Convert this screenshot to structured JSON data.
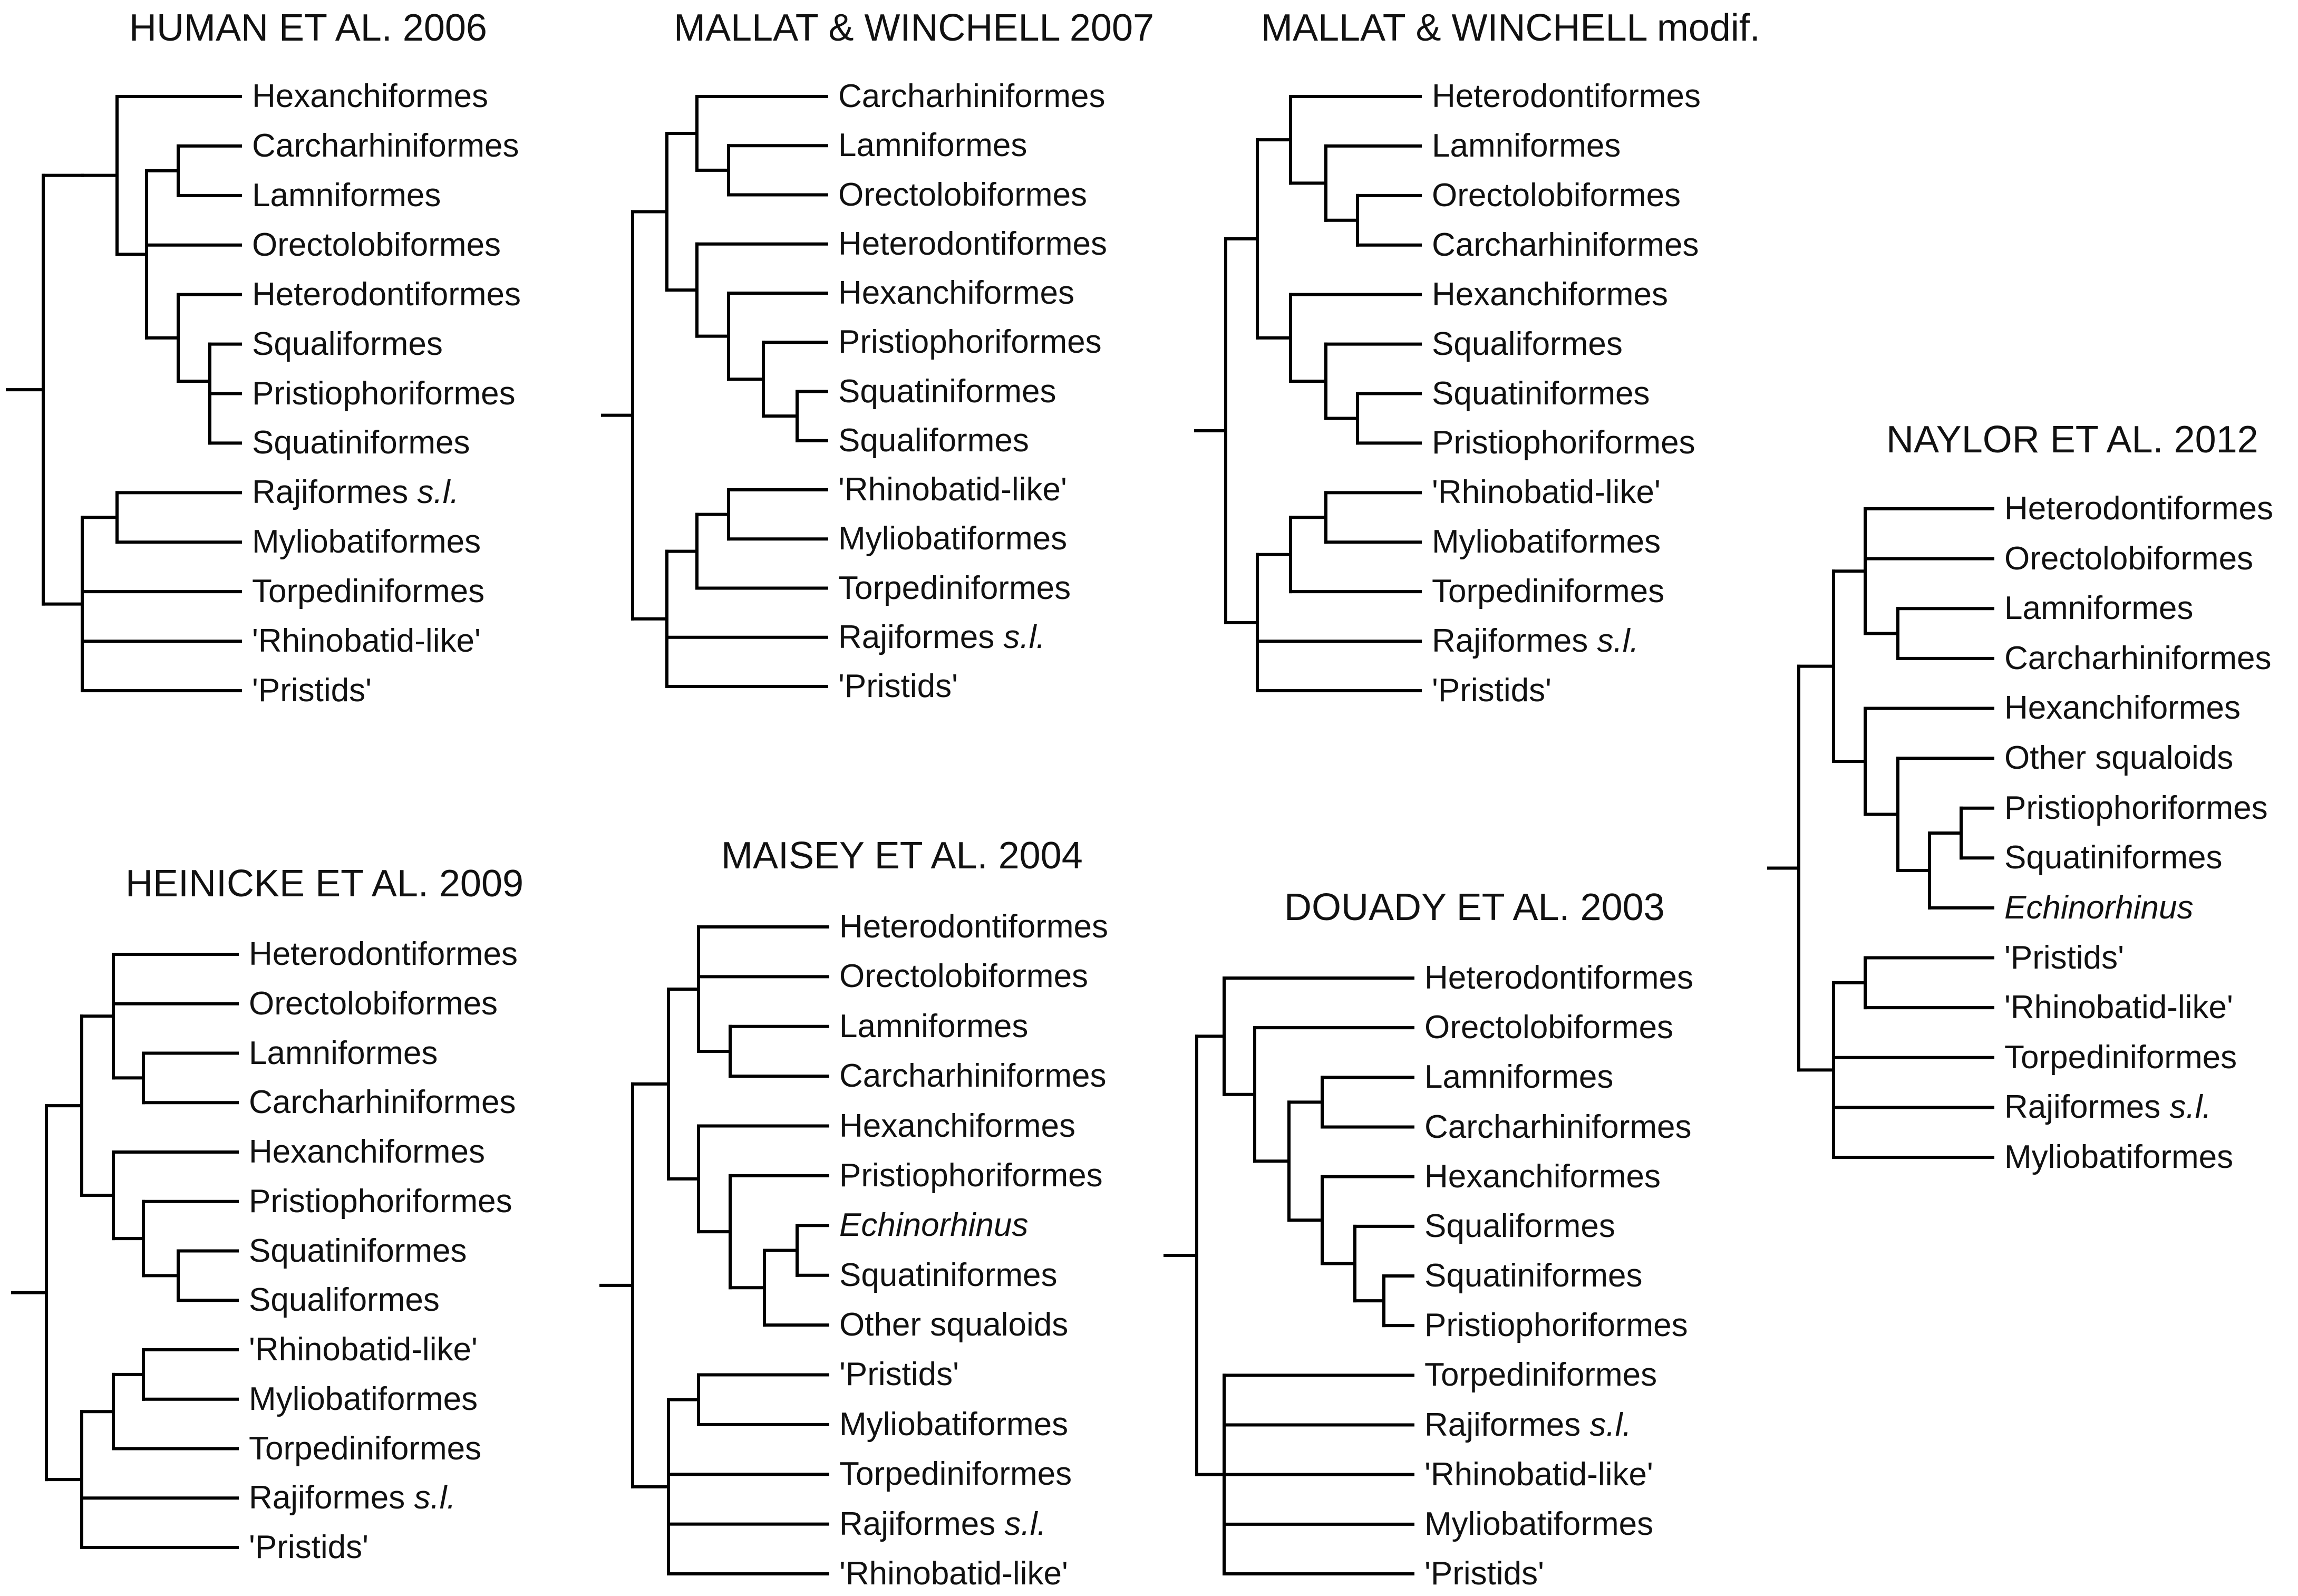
{
  "trees": [
    {
      "id": "human2006",
      "title": "HUMAN ET AL. 2006",
      "taxa": [
        {
          "name": "Hexanchiformes"
        },
        {
          "name": "Carcharhiniformes"
        },
        {
          "name": "Lamniformes"
        },
        {
          "name": "Orectolobiformes"
        },
        {
          "name": "Heterodontiformes"
        },
        {
          "name": "Squaliformes"
        },
        {
          "name": "Pristiophoriformes"
        },
        {
          "name": "Squatiniformes"
        },
        {
          "name": "Rajiformes",
          "qualifier": "s.l."
        },
        {
          "name": "Myliobatiformes"
        },
        {
          "name": "Torpediniformes"
        },
        {
          "name": "'Rhinobatid-like'"
        },
        {
          "name": "'Pristids'"
        }
      ],
      "topology": [
        [
          [
            0,
            [
              [
                1,
                2
              ],
              3,
              [
                4,
                [
                  5,
                  [
                    6,
                    7
                  ]
                ]
              ]
            ]
          ]
        ],
        [
          [
            8,
            9
          ],
          10,
          11,
          12
        ]
      ]
    },
    {
      "id": "mallat2007",
      "title": "MALLAT & WINCHELL 2007",
      "taxa": [
        {
          "name": "Carcharhiniformes"
        },
        {
          "name": "Lamniformes"
        },
        {
          "name": "Orectolobiformes"
        },
        {
          "name": "Heterodontiformes"
        },
        {
          "name": "Hexanchiformes"
        },
        {
          "name": "Pristiophoriformes"
        },
        {
          "name": "Squatiniformes"
        },
        {
          "name": "Squaliformes"
        },
        {
          "name": "'Rhinobatid-like'"
        },
        {
          "name": "Myliobatiformes"
        },
        {
          "name": "Torpediniformes"
        },
        {
          "name": "Rajiformes",
          "qualifier": "s.l."
        },
        {
          "name": "'Pristids'"
        }
      ],
      "topology": [
        [
          [
            0,
            [
              1,
              2
            ]
          ],
          [
            3,
            [
              4,
              [
                5,
                [
                  6,
                  7
                ]
              ]
            ]
          ]
        ],
        [
          [
            [
              8,
              9
            ],
            10
          ],
          11,
          12
        ]
      ]
    },
    {
      "id": "mallatmodif",
      "title": "MALLAT & WINCHELL modif.",
      "taxa": [
        {
          "name": "Heterodontiformes"
        },
        {
          "name": "Lamniformes"
        },
        {
          "name": "Orectolobiformes"
        },
        {
          "name": "Carcharhiniformes"
        },
        {
          "name": "Hexanchiformes"
        },
        {
          "name": "Squaliformes"
        },
        {
          "name": "Squatiniformes"
        },
        {
          "name": "Pristiophoriformes"
        },
        {
          "name": "'Rhinobatid-like'"
        },
        {
          "name": "Myliobatiformes"
        },
        {
          "name": "Torpediniformes"
        },
        {
          "name": "Rajiformes",
          "qualifier": "s.l."
        },
        {
          "name": "'Pristids'"
        }
      ],
      "topology": [
        [
          [
            0,
            [
              1,
              [
                2,
                3
              ]
            ]
          ],
          [
            4,
            [
              5,
              [
                6,
                7
              ]
            ]
          ]
        ],
        [
          [
            [
              8,
              9
            ],
            10
          ],
          11,
          12
        ]
      ]
    },
    {
      "id": "heinicke2009",
      "title": "HEINICKE ET AL. 2009",
      "taxa": [
        {
          "name": "Heterodontiformes"
        },
        {
          "name": "Orectolobiformes"
        },
        {
          "name": "Lamniformes"
        },
        {
          "name": "Carcharhiniformes"
        },
        {
          "name": "Hexanchiformes"
        },
        {
          "name": "Pristiophoriformes"
        },
        {
          "name": "Squatiniformes"
        },
        {
          "name": "Squaliformes"
        },
        {
          "name": "'Rhinobatid-like'"
        },
        {
          "name": "Myliobatiformes"
        },
        {
          "name": "Torpediniformes"
        },
        {
          "name": "Rajiformes",
          "qualifier": "s.l."
        },
        {
          "name": "'Pristids'"
        }
      ],
      "topology": [
        [
          [
            0,
            1,
            [
              2,
              3
            ]
          ],
          [
            4,
            [
              5,
              [
                6,
                7
              ]
            ]
          ]
        ],
        [
          [
            [
              8,
              9
            ],
            10
          ],
          11,
          12
        ]
      ]
    },
    {
      "id": "maisey2004",
      "title": "MAISEY ET AL. 2004",
      "taxa": [
        {
          "name": "Heterodontiformes"
        },
        {
          "name": "Orectolobiformes"
        },
        {
          "name": "Lamniformes"
        },
        {
          "name": "Carcharhiniformes"
        },
        {
          "name": "Hexanchiformes"
        },
        {
          "name": "Pristiophoriformes"
        },
        {
          "name": "Echinorhinus",
          "italic": true
        },
        {
          "name": "Squatiniformes"
        },
        {
          "name": "Other squaloids"
        },
        {
          "name": "'Pristids'"
        },
        {
          "name": "Myliobatiformes"
        },
        {
          "name": "Torpediniformes"
        },
        {
          "name": "Rajiformes",
          "qualifier": "s.l."
        },
        {
          "name": "'Rhinobatid-like'"
        }
      ],
      "topology": [
        [
          [
            0,
            1,
            [
              2,
              3
            ]
          ],
          [
            4,
            [
              5,
              [
                [
                  6,
                  7
                ],
                8
              ]
            ]
          ]
        ],
        [
          [
            9,
            10
          ],
          11,
          12,
          13
        ]
      ]
    },
    {
      "id": "douady2003",
      "title": "DOUADY ET AL. 2003",
      "taxa": [
        {
          "name": "Heterodontiformes"
        },
        {
          "name": "Orectolobiformes"
        },
        {
          "name": "Lamniformes"
        },
        {
          "name": "Carcharhiniformes"
        },
        {
          "name": "Hexanchiformes"
        },
        {
          "name": "Squaliformes"
        },
        {
          "name": "Squatiniformes"
        },
        {
          "name": "Pristiophoriformes"
        },
        {
          "name": "Torpediniformes"
        },
        {
          "name": "Rajiformes",
          "qualifier": "s.l."
        },
        {
          "name": "'Rhinobatid-like'"
        },
        {
          "name": "Myliobatiformes"
        },
        {
          "name": "'Pristids'"
        }
      ],
      "topology": [
        [
          0,
          [
            1,
            [
              [
                2,
                3
              ],
              [
                4,
                [
                  5,
                  [
                    6,
                    7
                  ]
                ]
              ]
            ]
          ]
        ],
        [
          8,
          9,
          10,
          11,
          12
        ]
      ]
    },
    {
      "id": "naylor2012",
      "title": "NAYLOR ET AL. 2012",
      "taxa": [
        {
          "name": "Heterodontiformes"
        },
        {
          "name": "Orectolobiformes"
        },
        {
          "name": "Lamniformes"
        },
        {
          "name": "Carcharhiniformes"
        },
        {
          "name": "Hexanchiformes"
        },
        {
          "name": "Other squaloids"
        },
        {
          "name": "Pristiophoriformes"
        },
        {
          "name": "Squatiniformes"
        },
        {
          "name": "Echinorhinus",
          "italic": true
        },
        {
          "name": "'Pristids'"
        },
        {
          "name": "'Rhinobatid-like'"
        },
        {
          "name": "Torpediniformes"
        },
        {
          "name": "Rajiformes",
          "qualifier": "s.l."
        },
        {
          "name": "Myliobatiformes"
        }
      ],
      "topology": [
        [
          [
            0,
            1,
            [
              2,
              3
            ]
          ],
          [
            4,
            [
              5,
              [
                [
                  6,
                  7
                ],
                8
              ]
            ]
          ]
        ],
        [
          [
            9,
            10
          ],
          11,
          12,
          13
        ]
      ]
    }
  ]
}
